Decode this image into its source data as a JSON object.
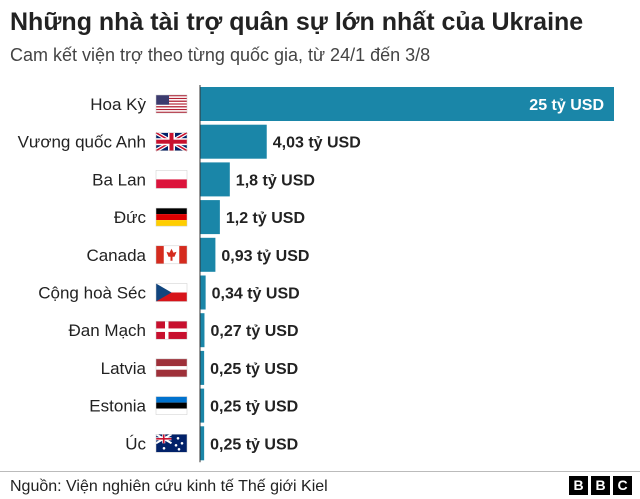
{
  "title": "Những nhà tài trợ quân sự lớn nhất của Ukraine",
  "subtitle": "Cam kết viện trợ theo từng quốc gia, từ 24/1 đến 3/8",
  "source": "Nguồn: Viện nghiên cứu kinh tế Thế giới Kiel",
  "logo": {
    "letters": [
      "B",
      "B",
      "C"
    ]
  },
  "colors": {
    "bar": "#1a86a8",
    "axis": "#333333"
  },
  "chart_data": {
    "type": "bar",
    "orientation": "horizontal",
    "unit": "tỷ USD",
    "xlim": [
      0,
      25
    ],
    "grid": false,
    "title": "Những nhà tài trợ quân sự lớn nhất của Ukraine",
    "subtitle": "Cam kết viện trợ theo từng quốc gia, từ 24/1 đến 3/8",
    "categories": [
      "Hoa Kỳ",
      "Vương quốc Anh",
      "Ba Lan",
      "Đức",
      "Canada",
      "Cộng hoà Séc",
      "Đan Mạch",
      "Latvia",
      "Estonia",
      "Úc"
    ],
    "flags": [
      "us-flag-icon",
      "uk-flag-icon",
      "poland-flag-icon",
      "germany-flag-icon",
      "canada-flag-icon",
      "czech-flag-icon",
      "denmark-flag-icon",
      "latvia-flag-icon",
      "estonia-flag-icon",
      "australia-flag-icon"
    ],
    "values": [
      25,
      4.03,
      1.8,
      1.2,
      0.93,
      0.34,
      0.27,
      0.25,
      0.25,
      0.25
    ],
    "value_labels": [
      "25 tỷ USD",
      "4,03 tỷ USD",
      "1,8 tỷ USD",
      "1,2 tỷ USD",
      "0,93 tỷ USD",
      "0,34 tỷ USD",
      "0,27 tỷ USD",
      "0,25 tỷ USD",
      "0,25 tỷ USD",
      "0,25 tỷ USD"
    ]
  }
}
